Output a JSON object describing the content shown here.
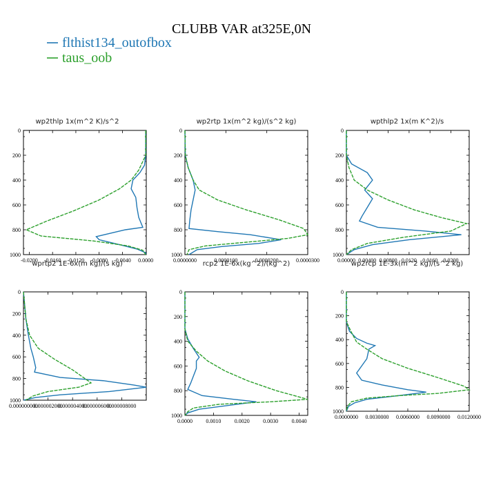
{
  "figure": {
    "title": "CLUBB VAR at325E,0N",
    "legend": [
      {
        "label": "flthist134_outofbox",
        "color": "#1f77b4",
        "dash": "solid"
      },
      {
        "label": "taus_oob",
        "color": "#2ca02c",
        "dash": "dashed"
      }
    ]
  },
  "chart_data": [
    {
      "type": "line",
      "title": "wp2thlp   1x(m^2 K)/s^2",
      "xlim": [
        -0.021,
        0.0001
      ],
      "ylim": [
        1000,
        0
      ],
      "yticks": [
        "0",
        "200",
        "400",
        "600",
        "800",
        "1000"
      ],
      "xticks": [
        {
          "v": -0.02,
          "label": "-0.0200"
        },
        {
          "v": -0.016,
          "label": "-0.0160"
        },
        {
          "v": -0.012,
          "label": "-0.0120"
        },
        {
          "v": -0.008,
          "label": "-0.0080"
        },
        {
          "v": -0.004,
          "label": "-0.0040"
        },
        {
          "v": 0.0,
          "label": "0.0000"
        }
      ],
      "series": [
        {
          "name": "flthist134_outofbox",
          "points": [
            [
              0,
              0
            ],
            [
              0,
              200
            ],
            [
              -0.0002,
              280
            ],
            [
              -0.001,
              340
            ],
            [
              -0.0022,
              400
            ],
            [
              -0.0025,
              470
            ],
            [
              -0.0017,
              540
            ],
            [
              -0.0015,
              620
            ],
            [
              -0.0012,
              700
            ],
            [
              -0.0005,
              780
            ],
            [
              -0.0035,
              800
            ],
            [
              -0.0085,
              855
            ],
            [
              -0.008,
              880
            ],
            [
              -0.0045,
              920
            ],
            [
              -0.0015,
              955
            ],
            [
              0,
              985
            ],
            [
              0,
              1000
            ]
          ]
        },
        {
          "name": "taus_oob",
          "points": [
            [
              0,
              0
            ],
            [
              0,
              200
            ],
            [
              -0.0005,
              250
            ],
            [
              -0.0012,
              320
            ],
            [
              -0.0025,
              400
            ],
            [
              -0.0045,
              470
            ],
            [
              -0.008,
              560
            ],
            [
              -0.0125,
              650
            ],
            [
              -0.017,
              730
            ],
            [
              -0.0205,
              800
            ],
            [
              -0.018,
              850
            ],
            [
              -0.009,
              890
            ],
            [
              -0.003,
              930
            ],
            [
              -0.0005,
              965
            ],
            [
              0,
              1000
            ]
          ]
        }
      ]
    },
    {
      "type": "line",
      "title": "wp2rtp   1x(m^2 kg)/(s^2 kg)",
      "xlim": [
        0,
        3e-05
      ],
      "ylim": [
        1000,
        0
      ],
      "yticks": [
        "0",
        "200",
        "400",
        "600",
        "800",
        "1000"
      ],
      "xticks": [
        {
          "v": 0,
          "label": "0.0000000"
        },
        {
          "v": 1e-05,
          "label": "0.0000100"
        },
        {
          "v": 2e-05,
          "label": "0.0000200"
        },
        {
          "v": 3e-05,
          "label": "0.0000300"
        }
      ],
      "series": [
        {
          "name": "flthist134_outofbox",
          "points": [
            [
              0,
              0
            ],
            [
              1e-07,
              200
            ],
            [
              8e-07,
              300
            ],
            [
              2e-06,
              400
            ],
            [
              2.5e-06,
              480
            ],
            [
              2e-06,
              560
            ],
            [
              1.5e-06,
              640
            ],
            [
              1.2e-06,
              720
            ],
            [
              1e-06,
              790
            ],
            [
              8e-06,
              815
            ],
            [
              1.6e-05,
              840
            ],
            [
              2.35e-05,
              880
            ],
            [
              1.8e-05,
              910
            ],
            [
              9e-06,
              935
            ],
            [
              3e-06,
              960
            ],
            [
              1e-06,
              1000
            ]
          ]
        },
        {
          "name": "taus_oob",
          "points": [
            [
              0,
              0
            ],
            [
              1e-07,
              200
            ],
            [
              8e-07,
              300
            ],
            [
              2e-06,
              400
            ],
            [
              3.5e-06,
              480
            ],
            [
              8e-06,
              560
            ],
            [
              1.5e-05,
              640
            ],
            [
              2.3e-05,
              720
            ],
            [
              2.9e-05,
              790
            ],
            [
              3e-05,
              840
            ],
            [
              2.5e-05,
              870
            ],
            [
              1.5e-05,
              900
            ],
            [
              5e-06,
              930
            ],
            [
              1e-06,
              960
            ],
            [
              5e-07,
              1000
            ]
          ]
        }
      ]
    },
    {
      "type": "line",
      "title": "wpthlp2   1x(m K^2)/s",
      "xlim": [
        0,
        0.0235
      ],
      "ylim": [
        1000,
        0
      ],
      "yticks": [
        "0",
        "200",
        "400",
        "600",
        "800",
        "1000"
      ],
      "xticks": [
        {
          "v": 0,
          "label": "0.00000"
        },
        {
          "v": 0.004,
          "label": "0.00400"
        },
        {
          "v": 0.008,
          "label": "0.00800"
        },
        {
          "v": 0.012,
          "label": "0.0120"
        },
        {
          "v": 0.016,
          "label": "0.0160"
        },
        {
          "v": 0.02,
          "label": "0.0200"
        }
      ],
      "series": [
        {
          "name": "flthist134_outofbox",
          "points": [
            [
              0,
              0
            ],
            [
              0,
              200
            ],
            [
              0.001,
              270
            ],
            [
              0.004,
              340
            ],
            [
              0.005,
              400
            ],
            [
              0.0035,
              480
            ],
            [
              0.005,
              550
            ],
            [
              0.004,
              620
            ],
            [
              0.003,
              690
            ],
            [
              0.0025,
              730
            ],
            [
              0.006,
              780
            ],
            [
              0.015,
              810
            ],
            [
              0.022,
              840
            ],
            [
              0.012,
              880
            ],
            [
              0.005,
              920
            ],
            [
              0.0015,
              960
            ],
            [
              0,
              1000
            ]
          ]
        },
        {
          "name": "taus_oob",
          "points": [
            [
              0,
              0
            ],
            [
              0,
              200
            ],
            [
              0.0005,
              300
            ],
            [
              0.0015,
              400
            ],
            [
              0.004,
              480
            ],
            [
              0.008,
              560
            ],
            [
              0.013,
              640
            ],
            [
              0.018,
              700
            ],
            [
              0.023,
              750
            ],
            [
              0.02,
              810
            ],
            [
              0.011,
              860
            ],
            [
              0.004,
              910
            ],
            [
              0.001,
              960
            ],
            [
              0,
              1000
            ]
          ]
        }
      ]
    },
    {
      "type": "line",
      "title": "wprtp2   1E-6x(m kg)/(s kg)",
      "xlim": [
        0,
        1e-05
      ],
      "ylim": [
        1000,
        0
      ],
      "yticks": [
        "0",
        "200",
        "400",
        "600",
        "800",
        "1000"
      ],
      "xticks": [
        {
          "v": 0,
          "label": "0.000000000"
        },
        {
          "v": 2e-06,
          "label": "0.000002000"
        },
        {
          "v": 4e-06,
          "label": "0.000004000"
        },
        {
          "v": 6e-06,
          "label": "0.000006000"
        },
        {
          "v": 8e-06,
          "label": "0.000008000"
        }
      ],
      "series": [
        {
          "name": "flthist134_outofbox",
          "points": [
            [
              0,
              0
            ],
            [
              2e-07,
              250
            ],
            [
              4e-07,
              400
            ],
            [
              6e-07,
              520
            ],
            [
              8e-07,
              600
            ],
            [
              1e-06,
              700
            ],
            [
              9e-07,
              740
            ],
            [
              3e-06,
              790
            ],
            [
              6.5e-06,
              820
            ],
            [
              9e-06,
              860
            ],
            [
              1e-05,
              880
            ],
            [
              7e-06,
              920
            ],
            [
              3e-06,
              950
            ],
            [
              1e-06,
              975
            ],
            [
              0,
              1000
            ]
          ]
        },
        {
          "name": "taus_oob",
          "points": [
            [
              0,
              0
            ],
            [
              2e-07,
              250
            ],
            [
              5e-07,
              400
            ],
            [
              1.2e-06,
              520
            ],
            [
              2.5e-06,
              620
            ],
            [
              4e-06,
              720
            ],
            [
              5e-06,
              800
            ],
            [
              5.5e-06,
              840
            ],
            [
              4.5e-06,
              880
            ],
            [
              2e-06,
              920
            ],
            [
              8e-07,
              960
            ],
            [
              2e-07,
              1000
            ]
          ]
        }
      ]
    },
    {
      "type": "line",
      "title": "rcp2   1E-6x(kg^2)/(kg^2)",
      "xlim": [
        0,
        0.0043
      ],
      "ylim": [
        1000,
        0
      ],
      "yticks": [
        "0",
        "200",
        "400",
        "600",
        "800",
        "1000"
      ],
      "xticks": [
        {
          "v": 0,
          "label": "0.0000"
        },
        {
          "v": 0.001,
          "label": "0.0010"
        },
        {
          "v": 0.002,
          "label": "0.0020"
        },
        {
          "v": 0.003,
          "label": "0.0030"
        },
        {
          "v": 0.004,
          "label": "0.0040"
        }
      ],
      "series": [
        {
          "name": "flthist134_outofbox",
          "points": [
            [
              0,
              0
            ],
            [
              0,
              300
            ],
            [
              0.0001,
              380
            ],
            [
              0.0003,
              460
            ],
            [
              0.0005,
              530
            ],
            [
              0.0004,
              560
            ],
            [
              0.0004,
              620
            ],
            [
              0.0003,
              680
            ],
            [
              0.0002,
              740
            ],
            [
              0.0001,
              790
            ],
            [
              0.0006,
              840
            ],
            [
              0.0017,
              870
            ],
            [
              0.0025,
              890
            ],
            [
              0.0015,
              920
            ],
            [
              0.0005,
              950
            ],
            [
              0.0001,
              980
            ],
            [
              0,
              1000
            ]
          ]
        },
        {
          "name": "taus_oob",
          "points": [
            [
              0,
              0
            ],
            [
              0,
              300
            ],
            [
              0.0001,
              400
            ],
            [
              0.0004,
              480
            ],
            [
              0.0008,
              560
            ],
            [
              0.0014,
              640
            ],
            [
              0.0022,
              720
            ],
            [
              0.0032,
              800
            ],
            [
              0.0043,
              870
            ],
            [
              0.003,
              890
            ],
            [
              0.0012,
              910
            ],
            [
              0.0003,
              940
            ],
            [
              0.0001,
              970
            ],
            [
              0,
              1000
            ]
          ]
        }
      ]
    },
    {
      "type": "line",
      "title": "wp2rcp   1E-3x(m^2 kg)/(s^2 kg)",
      "xlim": [
        0,
        0.012
      ],
      "ylim": [
        1000,
        0
      ],
      "yticks": [
        "0",
        "200",
        "400",
        "600",
        "800",
        "1000"
      ],
      "xticks": [
        {
          "v": 0,
          "label": "0.0000000"
        },
        {
          "v": 0.003,
          "label": "0.0030000"
        },
        {
          "v": 0.006,
          "label": "0.0060000"
        },
        {
          "v": 0.009,
          "label": "0.0090000"
        },
        {
          "v": 0.012,
          "label": "0.0120000"
        }
      ],
      "series": [
        {
          "name": "flthist134_outofbox",
          "points": [
            [
              0,
              0
            ],
            [
              0,
              250
            ],
            [
              0.0003,
              330
            ],
            [
              0.001,
              390
            ],
            [
              0.002,
              430
            ],
            [
              0.0028,
              450
            ],
            [
              0.0022,
              480
            ],
            [
              0.002,
              560
            ],
            [
              0.0015,
              620
            ],
            [
              0.001,
              680
            ],
            [
              0.0015,
              740
            ],
            [
              0.0035,
              780
            ],
            [
              0.006,
              820
            ],
            [
              0.0078,
              840
            ],
            [
              0.005,
              870
            ],
            [
              0.002,
              900
            ],
            [
              0.0008,
              930
            ],
            [
              0.0002,
              960
            ],
            [
              0,
              1000
            ]
          ]
        },
        {
          "name": "taus_oob",
          "points": [
            [
              0,
              0
            ],
            [
              0,
              250
            ],
            [
              0.0005,
              340
            ],
            [
              0.001,
              420
            ],
            [
              0.002,
              480
            ],
            [
              0.0035,
              560
            ],
            [
              0.006,
              640
            ],
            [
              0.009,
              720
            ],
            [
              0.0115,
              790
            ],
            [
              0.012,
              820
            ],
            [
              0.009,
              850
            ],
            [
              0.005,
              870
            ],
            [
              0.002,
              890
            ],
            [
              0.0005,
              920
            ],
            [
              0.0001,
              960
            ],
            [
              0,
              1000
            ]
          ]
        }
      ]
    }
  ]
}
